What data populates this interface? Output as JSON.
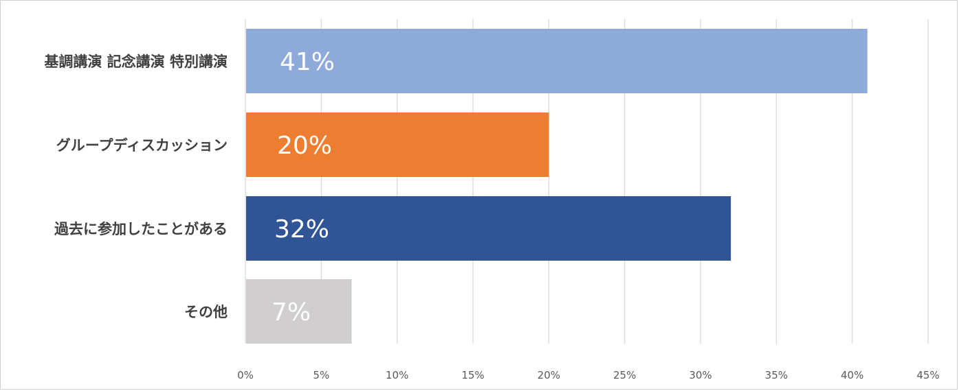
{
  "chart_data": {
    "type": "bar",
    "orientation": "horizontal",
    "categories": [
      "基調講演 記念講演 特別講演",
      "グループディスカッション",
      "過去に参加したことがある",
      "その他"
    ],
    "values": [
      41,
      20,
      32,
      7
    ],
    "value_labels": [
      "41%",
      "20%",
      "32%",
      "7%"
    ],
    "colors": [
      "#8eaadb",
      "#ed7d31",
      "#2f5597",
      "#d0cece"
    ],
    "xlim": [
      0,
      45
    ],
    "x_ticks": [
      0,
      5,
      10,
      15,
      20,
      25,
      30,
      35,
      40,
      45
    ],
    "x_tick_labels": [
      "0%",
      "5%",
      "10%",
      "15%",
      "20%",
      "25%",
      "30%",
      "35%",
      "40%",
      "45%"
    ],
    "grid": "vertical",
    "legend": "none",
    "title": "",
    "xlabel": "",
    "ylabel": ""
  }
}
